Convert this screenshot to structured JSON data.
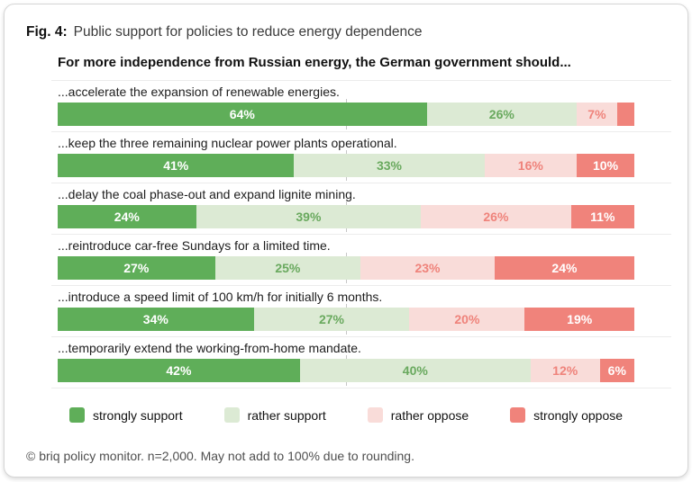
{
  "figure": {
    "label": "Fig. 4:",
    "title": "Public support for policies to reduce energy dependence",
    "subtitle": "For more independence from Russian energy, the German government should...",
    "footnote": "© briq policy monitor. n=2,000. May not add to 100% due to rounding."
  },
  "colors": {
    "strongly_support": "#5fae59",
    "rather_support": "#dcead4",
    "rather_oppose": "#f9dcd9",
    "strongly_oppose": "#f0837b",
    "white_label": "#ffffff",
    "rather_support_label": "#69a95e",
    "rather_oppose_label": "#ef837b",
    "separator": "#ececec",
    "tick": "#c6c6c6"
  },
  "legend": [
    {
      "key": "strongly_support",
      "label": "strongly support"
    },
    {
      "key": "rather_support",
      "label": "rather support"
    },
    {
      "key": "rather_oppose",
      "label": "rather oppose"
    },
    {
      "key": "strongly_oppose",
      "label": "strongly oppose"
    }
  ],
  "chart_data": {
    "type": "bar",
    "stacked": true,
    "orientation": "horizontal",
    "unit": "%",
    "xlim": [
      0,
      100
    ],
    "min_label_pct": 5,
    "gridline_at_pct": 50,
    "categories": [
      "...accelerate the expansion of renewable energies.",
      "...keep the three remaining nuclear power plants operational.",
      "...delay the coal phase-out and expand lignite mining.",
      "...reintroduce car-free Sundays for a limited time.",
      "...introduce a speed limit of 100 km/h for initially 6 months.",
      "...temporarily extend the working-from-home mandate."
    ],
    "series": [
      {
        "name": "strongly support",
        "key": "strongly_support",
        "color": "#5fae59",
        "label_color": "#ffffff",
        "values": [
          64,
          41,
          24,
          27,
          34,
          42
        ]
      },
      {
        "name": "rather support",
        "key": "rather_support",
        "color": "#dcead4",
        "label_color": "#69a95e",
        "values": [
          26,
          33,
          39,
          25,
          27,
          40
        ]
      },
      {
        "name": "rather oppose",
        "key": "rather_oppose",
        "color": "#f9dcd9",
        "label_color": "#ef837b",
        "values": [
          7,
          16,
          26,
          23,
          20,
          12
        ]
      },
      {
        "name": "strongly oppose",
        "key": "strongly_oppose",
        "color": "#f0837b",
        "label_color": "#ffffff",
        "values": [
          3,
          10,
          11,
          24,
          19,
          6
        ]
      }
    ]
  }
}
